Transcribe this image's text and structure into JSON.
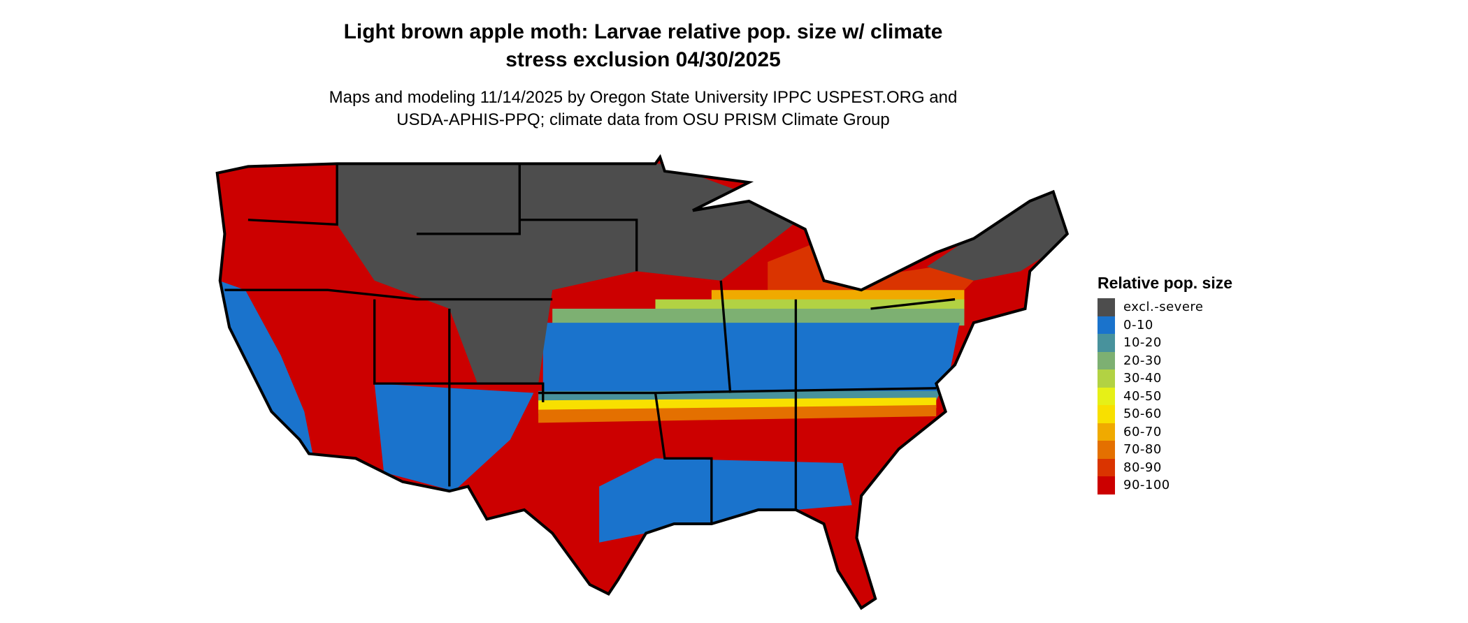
{
  "title_line1": "Light brown apple moth: Larvae relative pop. size w/ climate",
  "title_line2": "stress exclusion 04/30/2025",
  "subtitle_line1": "Maps and modeling 11/14/2025 by Oregon State University IPPC USPEST.ORG and",
  "subtitle_line2": "USDA-APHIS-PPQ; climate data from OSU PRISM Climate Group",
  "legend": {
    "title": "Relative pop. size",
    "items": [
      {
        "label": "excl.-severe",
        "color": "#4d4d4d"
      },
      {
        "label": "0-10",
        "color": "#1a73cc"
      },
      {
        "label": "10-20",
        "color": "#48929c"
      },
      {
        "label": "20-30",
        "color": "#7db072"
      },
      {
        "label": "30-40",
        "color": "#b2d243"
      },
      {
        "label": "40-50",
        "color": "#e6f017"
      },
      {
        "label": "50-60",
        "color": "#f8e000"
      },
      {
        "label": "60-70",
        "color": "#f0aa00"
      },
      {
        "label": "70-80",
        "color": "#e47000"
      },
      {
        "label": "80-90",
        "color": "#da3400"
      },
      {
        "label": "90-100",
        "color": "#cc0000"
      }
    ]
  },
  "chart_data": {
    "type": "map",
    "region": "contiguous United States",
    "legend_placement": "right"
  }
}
